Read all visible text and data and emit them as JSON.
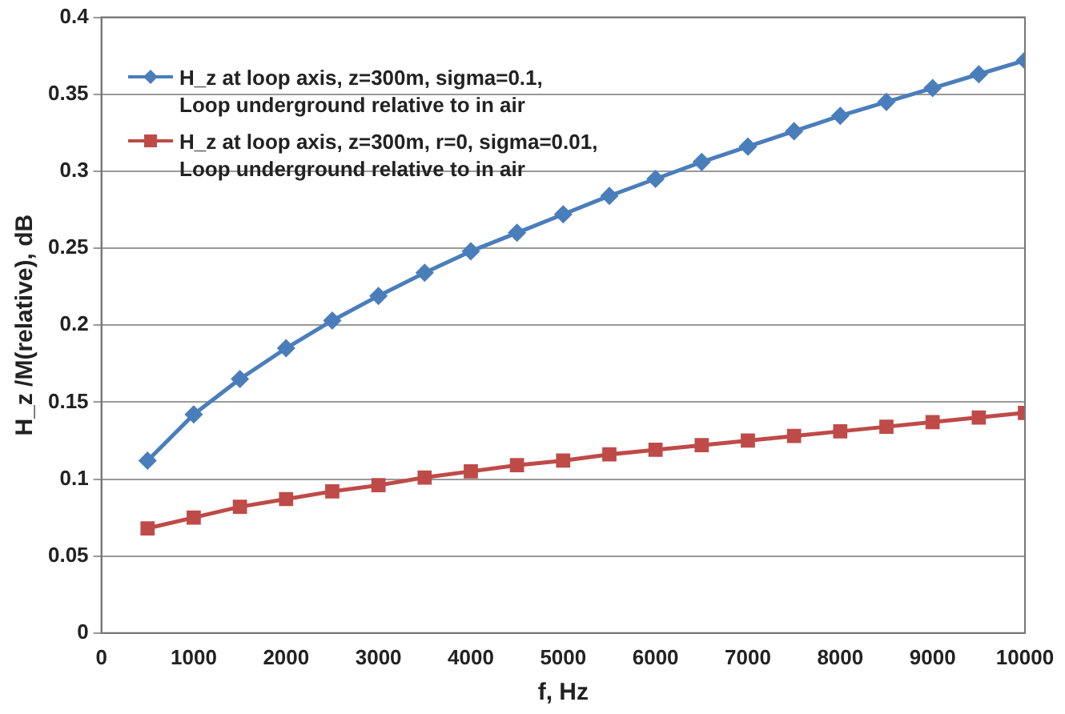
{
  "chart_data": {
    "type": "line",
    "xlabel": "f, Hz",
    "ylabel": "H_z /M(relative), dB",
    "x": [
      500,
      1000,
      1500,
      2000,
      2500,
      3000,
      3500,
      4000,
      4500,
      5000,
      5500,
      6000,
      6500,
      7000,
      7500,
      8000,
      8500,
      9000,
      9500,
      10000
    ],
    "series": [
      {
        "name": "H_z at loop axis, z=300m, sigma=0.1,\nLoop underground relative to in air",
        "color": "#4a7ebb",
        "marker": "diamond",
        "values": [
          0.112,
          0.142,
          0.165,
          0.185,
          0.203,
          0.219,
          0.234,
          0.248,
          0.26,
          0.272,
          0.284,
          0.295,
          0.306,
          0.316,
          0.326,
          0.336,
          0.345,
          0.354,
          0.363,
          0.372
        ]
      },
      {
        "name": "H_z at loop axis, z=300m, r=0, sigma=0.01,\nLoop underground relative to in air",
        "color": "#be4b48",
        "marker": "square",
        "values": [
          0.068,
          0.075,
          0.082,
          0.087,
          0.092,
          0.096,
          0.101,
          0.105,
          0.109,
          0.112,
          0.116,
          0.119,
          0.122,
          0.125,
          0.128,
          0.131,
          0.134,
          0.137,
          0.14,
          0.143
        ]
      }
    ],
    "xlim": [
      0,
      10000
    ],
    "xticks": [
      0,
      1000,
      2000,
      3000,
      4000,
      5000,
      6000,
      7000,
      8000,
      9000,
      10000
    ],
    "ylim": [
      0,
      0.4
    ],
    "yticks": [
      0,
      0.05,
      0.1,
      0.15,
      0.2,
      0.25,
      0.3,
      0.35,
      0.4
    ],
    "grid": "y",
    "legend": "top left",
    "line_style": "solid"
  }
}
